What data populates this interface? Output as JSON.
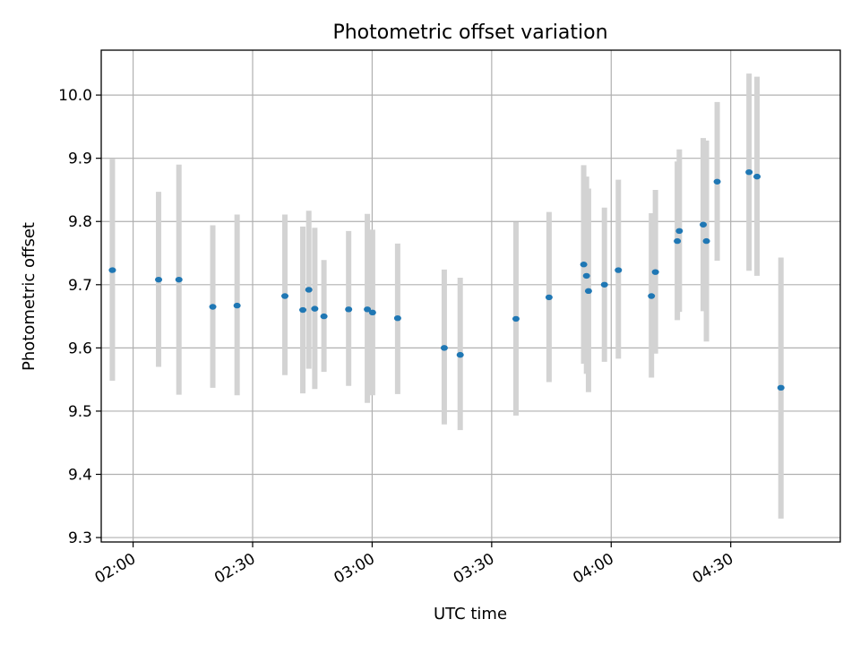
{
  "chart_data": {
    "type": "scatter",
    "title": "Photometric offset variation",
    "xlabel": "UTC time",
    "ylabel": "Photometric offset",
    "x_axis": {
      "unit": "minutes after midnight UTC",
      "range": [
        112.0,
        297.5
      ],
      "ticks": [
        120,
        150,
        180,
        210,
        240,
        270
      ],
      "tick_labels": [
        "02:00",
        "02:30",
        "03:00",
        "03:30",
        "04:00",
        "04:30"
      ]
    },
    "y_axis": {
      "range": [
        9.293,
        10.071
      ],
      "ticks": [
        9.3,
        9.4,
        9.5,
        9.6,
        9.7,
        9.8,
        9.9,
        10.0
      ],
      "tick_labels": [
        "9.3",
        "9.4",
        "9.5",
        "9.6",
        "9.7",
        "9.8",
        "9.9",
        "10.0"
      ]
    },
    "grid": true,
    "error_bar_color": "#d3d3d3",
    "marker_color": "#1f77b4",
    "points": [
      {
        "t": 114.8,
        "y": 9.723,
        "lo": 9.548,
        "hi": 9.899
      },
      {
        "t": 126.4,
        "y": 9.708,
        "lo": 9.57,
        "hi": 9.847
      },
      {
        "t": 131.5,
        "y": 9.708,
        "lo": 9.526,
        "hi": 9.89
      },
      {
        "t": 140.0,
        "y": 9.665,
        "lo": 9.537,
        "hi": 9.794
      },
      {
        "t": 146.1,
        "y": 9.667,
        "lo": 9.525,
        "hi": 9.811
      },
      {
        "t": 158.1,
        "y": 9.682,
        "lo": 9.557,
        "hi": 9.811
      },
      {
        "t": 162.6,
        "y": 9.66,
        "lo": 9.528,
        "hi": 9.792
      },
      {
        "t": 164.1,
        "y": 9.692,
        "lo": 9.567,
        "hi": 9.817
      },
      {
        "t": 165.6,
        "y": 9.662,
        "lo": 9.535,
        "hi": 9.79
      },
      {
        "t": 167.9,
        "y": 9.65,
        "lo": 9.562,
        "hi": 9.739
      },
      {
        "t": 174.1,
        "y": 9.661,
        "lo": 9.54,
        "hi": 9.785
      },
      {
        "t": 178.8,
        "y": 9.661,
        "lo": 9.513,
        "hi": 9.812
      },
      {
        "t": 180.1,
        "y": 9.656,
        "lo": 9.525,
        "hi": 9.787
      },
      {
        "t": 186.4,
        "y": 9.647,
        "lo": 9.527,
        "hi": 9.765
      },
      {
        "t": 198.1,
        "y": 9.6,
        "lo": 9.479,
        "hi": 9.724
      },
      {
        "t": 202.1,
        "y": 9.589,
        "lo": 9.47,
        "hi": 9.711
      },
      {
        "t": 216.1,
        "y": 9.646,
        "lo": 9.493,
        "hi": 9.799
      },
      {
        "t": 224.4,
        "y": 9.68,
        "lo": 9.546,
        "hi": 9.815
      },
      {
        "t": 233.1,
        "y": 9.732,
        "lo": 9.575,
        "hi": 9.889
      },
      {
        "t": 233.8,
        "y": 9.714,
        "lo": 9.559,
        "hi": 9.871
      },
      {
        "t": 234.3,
        "y": 9.69,
        "lo": 9.53,
        "hi": 9.852
      },
      {
        "t": 238.3,
        "y": 9.7,
        "lo": 9.578,
        "hi": 9.822
      },
      {
        "t": 241.8,
        "y": 9.723,
        "lo": 9.583,
        "hi": 9.866
      },
      {
        "t": 250.1,
        "y": 9.682,
        "lo": 9.553,
        "hi": 9.813
      },
      {
        "t": 251.1,
        "y": 9.72,
        "lo": 9.591,
        "hi": 9.85
      },
      {
        "t": 256.6,
        "y": 9.769,
        "lo": 9.644,
        "hi": 9.895
      },
      {
        "t": 257.1,
        "y": 9.785,
        "lo": 9.657,
        "hi": 9.914
      },
      {
        "t": 263.1,
        "y": 9.795,
        "lo": 9.658,
        "hi": 9.932
      },
      {
        "t": 263.9,
        "y": 9.769,
        "lo": 9.61,
        "hi": 9.928
      },
      {
        "t": 266.6,
        "y": 9.863,
        "lo": 9.738,
        "hi": 9.989
      },
      {
        "t": 274.6,
        "y": 9.878,
        "lo": 9.722,
        "hi": 10.034
      },
      {
        "t": 276.6,
        "y": 9.871,
        "lo": 9.714,
        "hi": 10.029
      },
      {
        "t": 282.6,
        "y": 9.537,
        "lo": 9.33,
        "hi": 9.743
      }
    ]
  }
}
